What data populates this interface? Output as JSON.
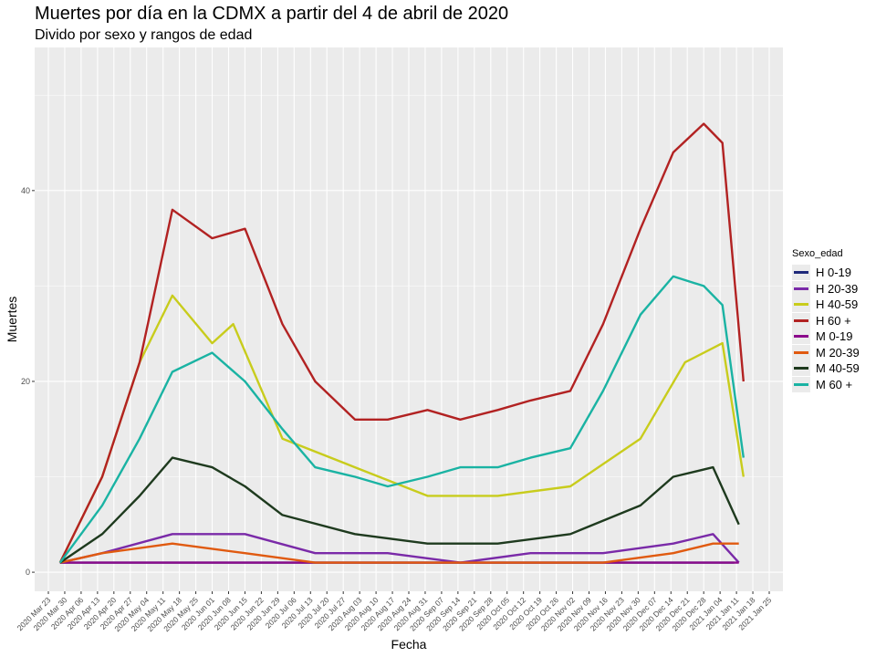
{
  "chart_data": {
    "type": "line",
    "title": "Muertes por día en la CDMX a partir del 4 de abril de 2020",
    "subtitle": "Divido por sexo y rangos de edad",
    "xlabel": "Fecha",
    "ylabel": "Muertes",
    "xlim": [
      "2020-03-23",
      "2021-01-25"
    ],
    "ylim": [
      -2,
      55
    ],
    "y_ticks": [
      0,
      20,
      40
    ],
    "x_ticks": [
      "2020 Mar 23",
      "2020 Mar 30",
      "2020 Apr 06",
      "2020 Apr 13",
      "2020 Apr 20",
      "2020 Apr 27",
      "2020 May 04",
      "2020 May 11",
      "2020 May 18",
      "2020 May 25",
      "2020 Jun 01",
      "2020 Jun 08",
      "2020 Jun 15",
      "2020 Jun 22",
      "2020 Jun 29",
      "2020 Jul 06",
      "2020 Jul 13",
      "2020 Jul 20",
      "2020 Jul 27",
      "2020 Aug 03",
      "2020 Aug 10",
      "2020 Aug 17",
      "2020 Aug 24",
      "2020 Aug 31",
      "2020 Sep 07",
      "2020 Sep 14",
      "2020 Sep 21",
      "2020 Sep 28",
      "2020 Oct 05",
      "2020 Oct 12",
      "2020 Oct 19",
      "2020 Oct 26",
      "2020 Nov 02",
      "2020 Nov 09",
      "2020 Nov 16",
      "2020 Nov 23",
      "2020 Nov 30",
      "2020 Dec 07",
      "2020 Dec 14",
      "2020 Dec 21",
      "2020 Dec 28",
      "2021 Jan 04",
      "2021 Jan 11",
      "2021 Jan 18",
      "2021 Jan 25"
    ],
    "grid": true,
    "legend_title": "Sexo_edad",
    "legend_position": "right",
    "series": [
      {
        "name": "H 0-19",
        "color": "#1f2a7a",
        "x": [
          "2020-03-28",
          "2020-05-01",
          "2020-07-01",
          "2020-09-01",
          "2020-11-01",
          "2020-12-15",
          "2021-01-10"
        ],
        "values": [
          1,
          1,
          1,
          1,
          1,
          1,
          1
        ]
      },
      {
        "name": "H 20-39",
        "color": "#7a2aa8",
        "x": [
          "2020-03-28",
          "2020-04-15",
          "2020-05-15",
          "2020-06-15",
          "2020-07-15",
          "2020-08-15",
          "2020-09-15",
          "2020-10-15",
          "2020-11-15",
          "2020-12-15",
          "2021-01-01",
          "2021-01-12"
        ],
        "values": [
          1,
          2,
          4,
          4,
          2,
          2,
          1,
          2,
          2,
          3,
          4,
          1
        ]
      },
      {
        "name": "H 40-59",
        "color": "#c8cc1c",
        "x": [
          "2020-03-28",
          "2020-04-15",
          "2020-05-01",
          "2020-05-15",
          "2020-06-01",
          "2020-06-10",
          "2020-07-01",
          "2020-08-01",
          "2020-09-01",
          "2020-10-01",
          "2020-11-01",
          "2020-12-01",
          "2020-12-20",
          "2021-01-05",
          "2021-01-14"
        ],
        "values": [
          1,
          10,
          22,
          29,
          24,
          26,
          14,
          11,
          8,
          8,
          9,
          14,
          22,
          24,
          10
        ]
      },
      {
        "name": "H 60 +",
        "color": "#b22222",
        "x": [
          "2020-03-28",
          "2020-04-15",
          "2020-05-01",
          "2020-05-15",
          "2020-06-01",
          "2020-06-15",
          "2020-07-01",
          "2020-07-15",
          "2020-08-01",
          "2020-08-15",
          "2020-09-01",
          "2020-09-15",
          "2020-10-01",
          "2020-10-15",
          "2020-11-01",
          "2020-11-15",
          "2020-12-01",
          "2020-12-15",
          "2020-12-28",
          "2021-01-05",
          "2021-01-14"
        ],
        "values": [
          1,
          10,
          22,
          38,
          35,
          36,
          26,
          20,
          16,
          16,
          17,
          16,
          17,
          18,
          19,
          26,
          36,
          44,
          47,
          45,
          20
        ]
      },
      {
        "name": "M 0-19",
        "color": "#8b0a8b",
        "x": [
          "2020-03-28",
          "2020-05-01",
          "2020-07-01",
          "2020-09-01",
          "2020-11-01",
          "2020-12-15",
          "2021-01-12"
        ],
        "values": [
          1,
          1,
          1,
          1,
          1,
          1,
          1
        ]
      },
      {
        "name": "M 20-39",
        "color": "#e05a10",
        "x": [
          "2020-03-28",
          "2020-04-15",
          "2020-05-15",
          "2020-06-15",
          "2020-07-15",
          "2020-08-15",
          "2020-09-15",
          "2020-10-15",
          "2020-11-15",
          "2020-12-15",
          "2021-01-01",
          "2021-01-12"
        ],
        "values": [
          1,
          2,
          3,
          2,
          1,
          1,
          1,
          1,
          1,
          2,
          3,
          3
        ]
      },
      {
        "name": "M 40-59",
        "color": "#1e3a1e",
        "x": [
          "2020-03-28",
          "2020-04-15",
          "2020-05-01",
          "2020-05-15",
          "2020-06-01",
          "2020-06-15",
          "2020-07-01",
          "2020-08-01",
          "2020-09-01",
          "2020-10-01",
          "2020-11-01",
          "2020-12-01",
          "2020-12-15",
          "2021-01-01",
          "2021-01-12"
        ],
        "values": [
          1,
          4,
          8,
          12,
          11,
          9,
          6,
          4,
          3,
          3,
          4,
          7,
          10,
          11,
          5
        ]
      },
      {
        "name": "M 60 +",
        "color": "#1ab3a3",
        "x": [
          "2020-03-28",
          "2020-04-15",
          "2020-05-01",
          "2020-05-15",
          "2020-06-01",
          "2020-06-15",
          "2020-07-01",
          "2020-07-15",
          "2020-08-01",
          "2020-08-15",
          "2020-09-01",
          "2020-09-15",
          "2020-10-01",
          "2020-10-15",
          "2020-11-01",
          "2020-11-15",
          "2020-12-01",
          "2020-12-15",
          "2020-12-28",
          "2021-01-05",
          "2021-01-14"
        ],
        "values": [
          1,
          7,
          14,
          21,
          23,
          20,
          15,
          11,
          10,
          9,
          10,
          11,
          11,
          12,
          13,
          19,
          27,
          31,
          30,
          28,
          12
        ]
      }
    ]
  }
}
